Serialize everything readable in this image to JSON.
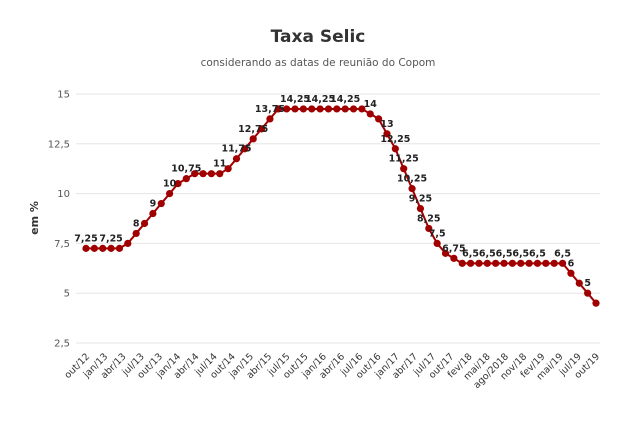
{
  "chart_data": {
    "type": "line",
    "title": "Taxa Selic",
    "subtitle": "considerando as datas de reunião do Copom",
    "ylabel": "em %",
    "xlabel": "",
    "ylim": [
      2.5,
      15
    ],
    "yticks": [
      "2,5",
      "5",
      "7,5",
      "10",
      "12,5",
      "15"
    ],
    "ytick_values": [
      2.5,
      5,
      7.5,
      10,
      12.5,
      15
    ],
    "grid": true,
    "legend": "none",
    "color": "#a00000",
    "x_tick_labels": [
      "out/12",
      "jan/13",
      "abr/13",
      "jul/13",
      "out/13",
      "jan/14",
      "abr/14",
      "jul/14",
      "out/14",
      "jan/15",
      "abr/15",
      "jul/15",
      "out/15",
      "jan/16",
      "abr/16",
      "jul/16",
      "out/16",
      "jan/17",
      "abr/17",
      "jul/17",
      "out/17",
      "fev/18",
      "mai/18",
      "ago/2018",
      "nov/18",
      "fev/19",
      "mai/19",
      "jul/19",
      "out/19"
    ],
    "values": [
      7.25,
      7.25,
      7.25,
      7.25,
      7.25,
      7.5,
      8,
      8.5,
      9,
      9.5,
      10,
      10.5,
      10.75,
      11,
      11,
      11,
      11,
      11.25,
      11.75,
      12.25,
      12.75,
      13.25,
      13.75,
      14.25,
      14.25,
      14.25,
      14.25,
      14.25,
      14.25,
      14.25,
      14.25,
      14.25,
      14.25,
      14.25,
      14,
      13.75,
      13,
      12.25,
      11.25,
      10.25,
      9.25,
      8.25,
      7.5,
      7,
      6.75,
      6.5,
      6.5,
      6.5,
      6.5,
      6.5,
      6.5,
      6.5,
      6.5,
      6.5,
      6.5,
      6.5,
      6.5,
      6.5,
      6,
      5.5,
      5,
      4.5
    ],
    "data_labels": [
      {
        "index": 0,
        "text": "7,25"
      },
      {
        "index": 3,
        "text": "7,25"
      },
      {
        "index": 6,
        "text": "8"
      },
      {
        "index": 8,
        "text": "9"
      },
      {
        "index": 10,
        "text": "10"
      },
      {
        "index": 12,
        "text": "10,75"
      },
      {
        "index": 16,
        "text": "11"
      },
      {
        "index": 18,
        "text": "11,75"
      },
      {
        "index": 20,
        "text": "12,75"
      },
      {
        "index": 22,
        "text": "13,75"
      },
      {
        "index": 25,
        "text": "14,25"
      },
      {
        "index": 28,
        "text": "14,25"
      },
      {
        "index": 31,
        "text": "14,25"
      },
      {
        "index": 34,
        "text": "14"
      },
      {
        "index": 36,
        "text": "13"
      },
      {
        "index": 37,
        "text": "12,25"
      },
      {
        "index": 38,
        "text": "11,25"
      },
      {
        "index": 39,
        "text": "10,25"
      },
      {
        "index": 40,
        "text": "9,25"
      },
      {
        "index": 41,
        "text": "8,25"
      },
      {
        "index": 42,
        "text": "7,5"
      },
      {
        "index": 44,
        "text": "6,75"
      },
      {
        "index": 46,
        "text": "6,5"
      },
      {
        "index": 48,
        "text": "6,5"
      },
      {
        "index": 50,
        "text": "6,5"
      },
      {
        "index": 52,
        "text": "6,5"
      },
      {
        "index": 54,
        "text": "6,5"
      },
      {
        "index": 57,
        "text": "6,5"
      },
      {
        "index": 58,
        "text": "6"
      },
      {
        "index": 60,
        "text": "5"
      }
    ]
  }
}
